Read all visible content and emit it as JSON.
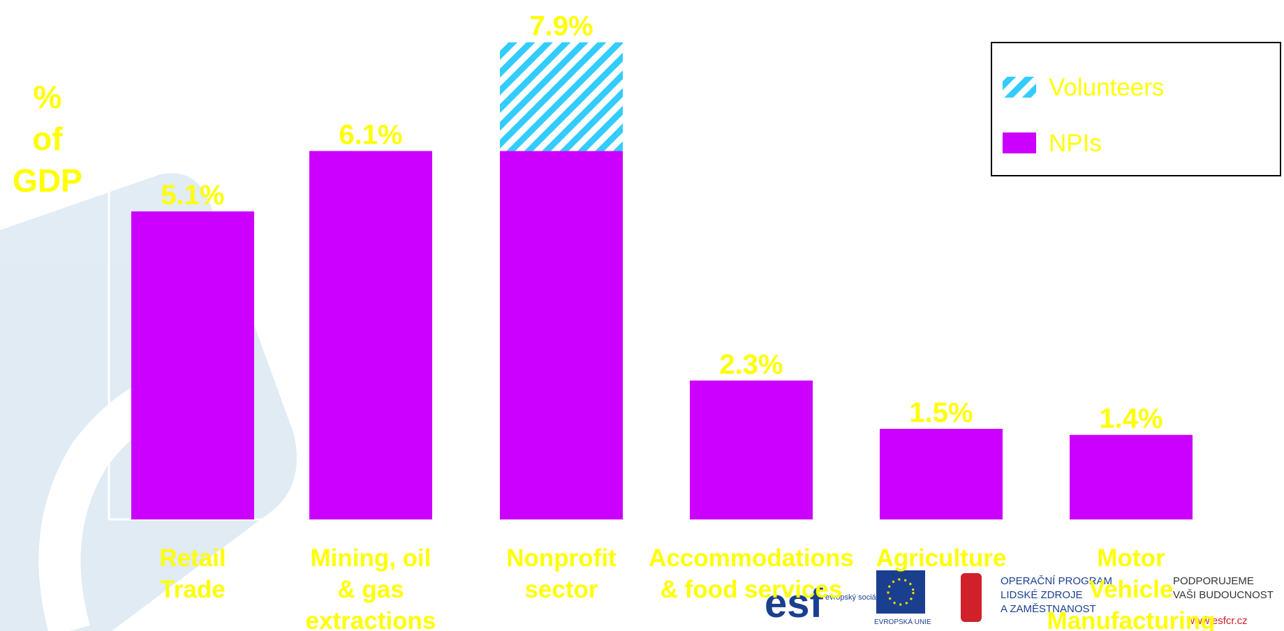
{
  "chart_data": {
    "type": "bar",
    "stacked": true,
    "ylabel": "% of GDP",
    "categories": [
      "Retail\nTrade",
      "Mining, oil\n& gas\nextractions",
      "Nonprofit\nsector",
      "Accommodations\n& food services",
      "Agriculture",
      "Motor\nVehicle\nManufacturing"
    ],
    "series": [
      {
        "name": "NPIs",
        "color": "#cc00ff",
        "values": [
          5.1,
          6.1,
          6.1,
          2.3,
          1.5,
          1.4
        ]
      },
      {
        "name": "Volunteers",
        "color": "#33ccff",
        "pattern": "hatch",
        "values": [
          null,
          null,
          1.8,
          null,
          null,
          null
        ]
      }
    ],
    "totals": [
      5.1,
      6.1,
      7.9,
      2.3,
      1.5,
      1.4
    ],
    "total_labels": [
      "5.1%",
      "6.1%",
      "7.9%",
      "2.3%",
      "1.5%",
      "1.4%"
    ],
    "ylim": [
      0,
      8
    ],
    "legend": "upper right",
    "label_color": "#ffff00"
  },
  "footer_logos": [
    "esf",
    "evropský sociální fond v ČR",
    "EVROPSKÁ UNIE",
    "OPERAČNÍ PROGRAM",
    "LIDSKÉ ZDROJE",
    "A ZAMĚSTNANOST",
    "PODPORUJEME",
    "VAŠI BUDOUCNOST",
    "www.esfcr.cz"
  ]
}
